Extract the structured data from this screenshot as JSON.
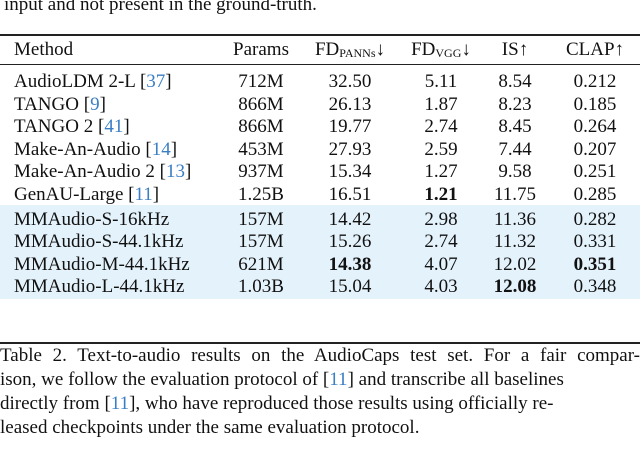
{
  "intro_text": "input and not present in the ground-truth.",
  "table": {
    "headers": {
      "method": "Method",
      "params": "Params",
      "fd_panns": "FD",
      "fd_panns_sub": "PANNs",
      "fd_panns_arrow": "↓",
      "fd_vgg": "FD",
      "fd_vgg_sub": "VGG",
      "fd_vgg_arrow": "↓",
      "is": "IS↑",
      "clap": "CLAP↑"
    },
    "rows": [
      {
        "method": "AudioLDM 2-L ",
        "cite": "37",
        "params": "712M",
        "fd_panns": "32.50",
        "fd_vgg": "5.11",
        "is": "8.54",
        "clap": "0.212"
      },
      {
        "method": "TANGO ",
        "cite": "9",
        "params": "866M",
        "fd_panns": "26.13",
        "fd_vgg": "1.87",
        "is": "8.23",
        "clap": "0.185"
      },
      {
        "method": "TANGO 2 ",
        "cite": "41",
        "params": "866M",
        "fd_panns": "19.77",
        "fd_vgg": "2.74",
        "is": "8.45",
        "clap": "0.264"
      },
      {
        "method": "Make-An-Audio ",
        "cite": "14",
        "params": "453M",
        "fd_panns": "27.93",
        "fd_vgg": "2.59",
        "is": "7.44",
        "clap": "0.207"
      },
      {
        "method": "Make-An-Audio 2 ",
        "cite": "13",
        "params": "937M",
        "fd_panns": "15.34",
        "fd_vgg": "1.27",
        "is": "9.58",
        "clap": "0.251"
      },
      {
        "method": "GenAU-Large ",
        "cite": "11",
        "params": "1.25B",
        "fd_panns": "16.51",
        "fd_vgg": "1.21",
        "is": "11.75",
        "clap": "0.285"
      },
      {
        "method": "MMAudio-S-16kHz",
        "params": "157M",
        "fd_panns": "14.42",
        "fd_vgg": "2.98",
        "is": "11.36",
        "clap": "0.282"
      },
      {
        "method": "MMAudio-S-44.1kHz",
        "params": "157M",
        "fd_panns": "15.26",
        "fd_vgg": "2.74",
        "is": "11.32",
        "clap": "0.331"
      },
      {
        "method": "MMAudio-M-44.1kHz",
        "params": "621M",
        "fd_panns": "14.38",
        "fd_vgg": "4.07",
        "is": "12.02",
        "clap": "0.351"
      },
      {
        "method": "MMAudio-L-44.1kHz",
        "params": "1.03B",
        "fd_panns": "15.04",
        "fd_vgg": "4.03",
        "is": "12.08",
        "clap": "0.348"
      }
    ],
    "highlight_color": "#e4f2fb",
    "citation_color": "#3a7ec4"
  },
  "caption": {
    "l1a": "Table 2. Text-to-audio results on the AudioCaps test set. For a fair compar-",
    "l2a": "ison, we follow the evaluation protocol of [",
    "l2cite": "11",
    "l2b": "] and transcribe all baselines",
    "l3a": "directly from [",
    "l3cite": "11",
    "l3b": "], who have reproduced those results using officially re-",
    "l4": "leased checkpoints under the same evaluation protocol."
  }
}
